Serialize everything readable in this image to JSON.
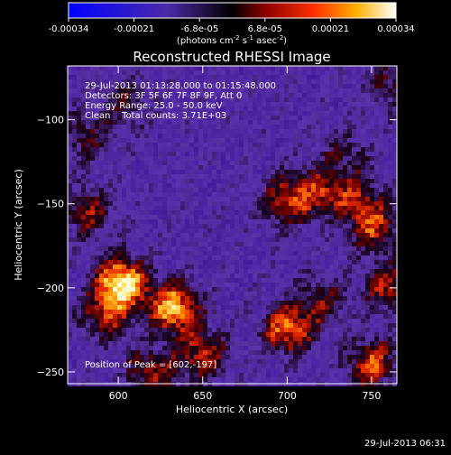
{
  "chart_data": {
    "type": "heatmap",
    "title": "Reconstructed RHESSI Image",
    "xlabel": "Heliocentric X (arcsec)",
    "ylabel": "Heliocentric Y (arcsec)",
    "xlim": [
      570,
      765
    ],
    "ylim": [
      -257,
      -68
    ],
    "xticks": [
      600,
      650,
      700,
      750
    ],
    "yticks": [
      -100,
      -150,
      -200,
      -250
    ],
    "colorbar": {
      "min": -0.00034,
      "max": 0.00034,
      "ticks": [
        "-0.00034",
        "-0.00021",
        "-6.8e-05",
        "6.8e-05",
        "0.00021",
        "0.00034"
      ],
      "label_parts": [
        "(photons cm",
        "-2",
        " s",
        "-1",
        " asec",
        "-2",
        ")"
      ]
    },
    "annotations": [
      "29-Jul-2013 01:13:28.000 to 01:15:48.000",
      "Detectors: 3F 5F 6F 7F 8F 9F, Att 0",
      "Energy Range: 25.0 - 50.0 keV",
      "Clean    Total counts: 3.71E+03"
    ],
    "peak_text": "Position of Peak = [602,-197]",
    "peak": [
      602,
      -197
    ],
    "sources": [
      {
        "x": 602,
        "y": -197,
        "amp": 1.0
      },
      {
        "x": 633,
        "y": -212,
        "amp": 0.85
      },
      {
        "x": 592,
        "y": -217,
        "amp": 0.5
      },
      {
        "x": 700,
        "y": -148,
        "amp": 0.55
      },
      {
        "x": 720,
        "y": -143,
        "amp": 0.45
      },
      {
        "x": 742,
        "y": -148,
        "amp": 0.45
      },
      {
        "x": 752,
        "y": -165,
        "amp": 0.5
      },
      {
        "x": 700,
        "y": -225,
        "amp": 0.7
      },
      {
        "x": 650,
        "y": -240,
        "amp": 0.55
      },
      {
        "x": 620,
        "y": -250,
        "amp": 0.5
      },
      {
        "x": 750,
        "y": -245,
        "amp": 0.6
      },
      {
        "x": 760,
        "y": -200,
        "amp": 0.5
      },
      {
        "x": 720,
        "y": -208,
        "amp": 0.4
      },
      {
        "x": 582,
        "y": -155,
        "amp": 0.45
      },
      {
        "x": 580,
        "y": -110,
        "amp": 0.35
      },
      {
        "x": 605,
        "y": -90,
        "amp": 0.3
      },
      {
        "x": 760,
        "y": -80,
        "amp": 0.35
      },
      {
        "x": 735,
        "y": -120,
        "amp": 0.3
      }
    ]
  },
  "footer_date": "29-Jul-2013 06:31"
}
